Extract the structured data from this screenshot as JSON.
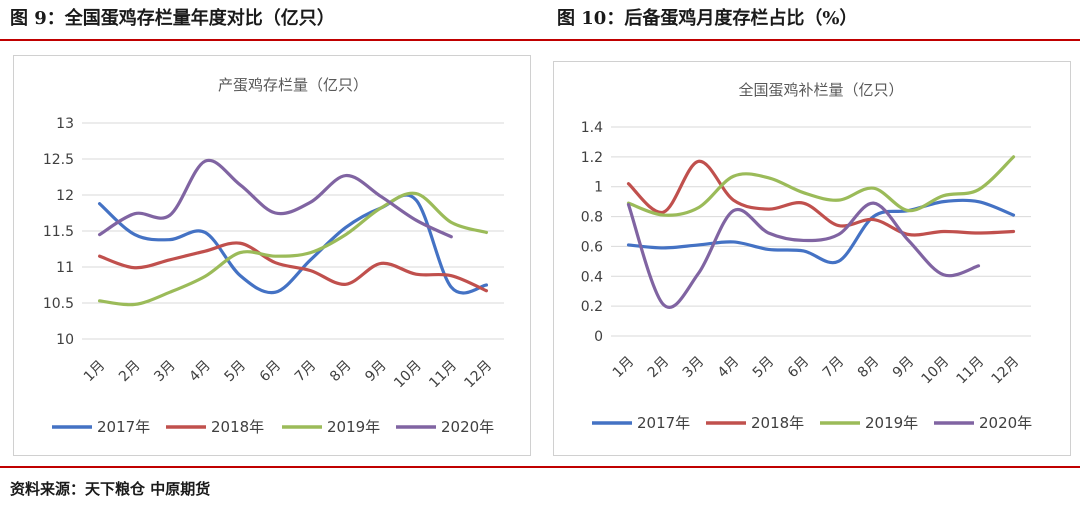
{
  "left_figure": {
    "caption": "图 9：全国蛋鸡存栏量年度对比（亿只）"
  },
  "right_figure": {
    "caption": "图 10：后备蛋鸡月度存栏占比（%）"
  },
  "source": "资料来源：天下粮仓  中原期货",
  "chart_data": [
    {
      "type": "line",
      "title": "产蛋鸡存栏量（亿只）",
      "categories": [
        "1月",
        "2月",
        "3月",
        "4月",
        "5月",
        "6月",
        "7月",
        "8月",
        "9月",
        "10月",
        "11月",
        "12月"
      ],
      "ylim": [
        10,
        13
      ],
      "yticks": [
        "13",
        "12.5",
        "12",
        "11.5",
        "11",
        "10.5",
        "10"
      ],
      "ytick_values": [
        13,
        12.5,
        12,
        11.5,
        11,
        10.5,
        10
      ],
      "grid": true,
      "legend": "bottom",
      "series": [
        {
          "name": "2017年",
          "color": "#4472c4",
          "values": [
            11.88,
            11.45,
            11.38,
            11.48,
            10.88,
            10.65,
            11.1,
            11.55,
            11.82,
            11.93,
            10.72,
            10.75
          ]
        },
        {
          "name": "2018年",
          "color": "#c0504d",
          "values": [
            11.15,
            10.99,
            11.1,
            11.22,
            11.33,
            11.06,
            10.95,
            10.76,
            11.05,
            10.9,
            10.88,
            10.67
          ]
        },
        {
          "name": "2019年",
          "color": "#9bbb59",
          "values": [
            10.53,
            10.48,
            10.65,
            10.87,
            11.2,
            11.15,
            11.2,
            11.45,
            11.82,
            12.02,
            11.62,
            11.48
          ]
        },
        {
          "name": "2020年",
          "color": "#8064a2",
          "values": [
            11.45,
            11.74,
            11.72,
            12.47,
            12.14,
            11.75,
            11.9,
            12.27,
            11.98,
            11.65,
            11.42,
            null
          ]
        }
      ]
    },
    {
      "type": "line",
      "title": "全国蛋鸡补栏量（亿只）",
      "categories": [
        "1月",
        "2月",
        "3月",
        "4月",
        "5月",
        "6月",
        "7月",
        "8月",
        "9月",
        "10月",
        "11月",
        "12月"
      ],
      "ylim": [
        0,
        1.4
      ],
      "yticks": [
        "1.4",
        "1.2",
        "1",
        "0.8",
        "0.6",
        "0.4",
        "0.2",
        "0"
      ],
      "ytick_values": [
        1.4,
        1.2,
        1.0,
        0.8,
        0.6,
        0.4,
        0.2,
        0
      ],
      "grid": true,
      "legend": "bottom",
      "series": [
        {
          "name": "2017年",
          "color": "#4472c4",
          "values": [
            0.61,
            0.59,
            0.61,
            0.63,
            0.58,
            0.57,
            0.5,
            0.8,
            0.84,
            0.9,
            0.9,
            0.81
          ]
        },
        {
          "name": "2018年",
          "color": "#c0504d",
          "values": [
            1.02,
            0.83,
            1.17,
            0.91,
            0.85,
            0.89,
            0.74,
            0.78,
            0.68,
            0.7,
            0.69,
            0.7
          ]
        },
        {
          "name": "2019年",
          "color": "#9bbb59",
          "values": [
            0.89,
            0.81,
            0.86,
            1.07,
            1.06,
            0.96,
            0.91,
            0.99,
            0.84,
            0.94,
            0.98,
            1.2
          ]
        },
        {
          "name": "2020年",
          "color": "#8064a2",
          "values": [
            0.88,
            0.21,
            0.42,
            0.84,
            0.69,
            0.64,
            0.68,
            0.89,
            0.64,
            0.41,
            0.47,
            null
          ]
        }
      ]
    }
  ]
}
